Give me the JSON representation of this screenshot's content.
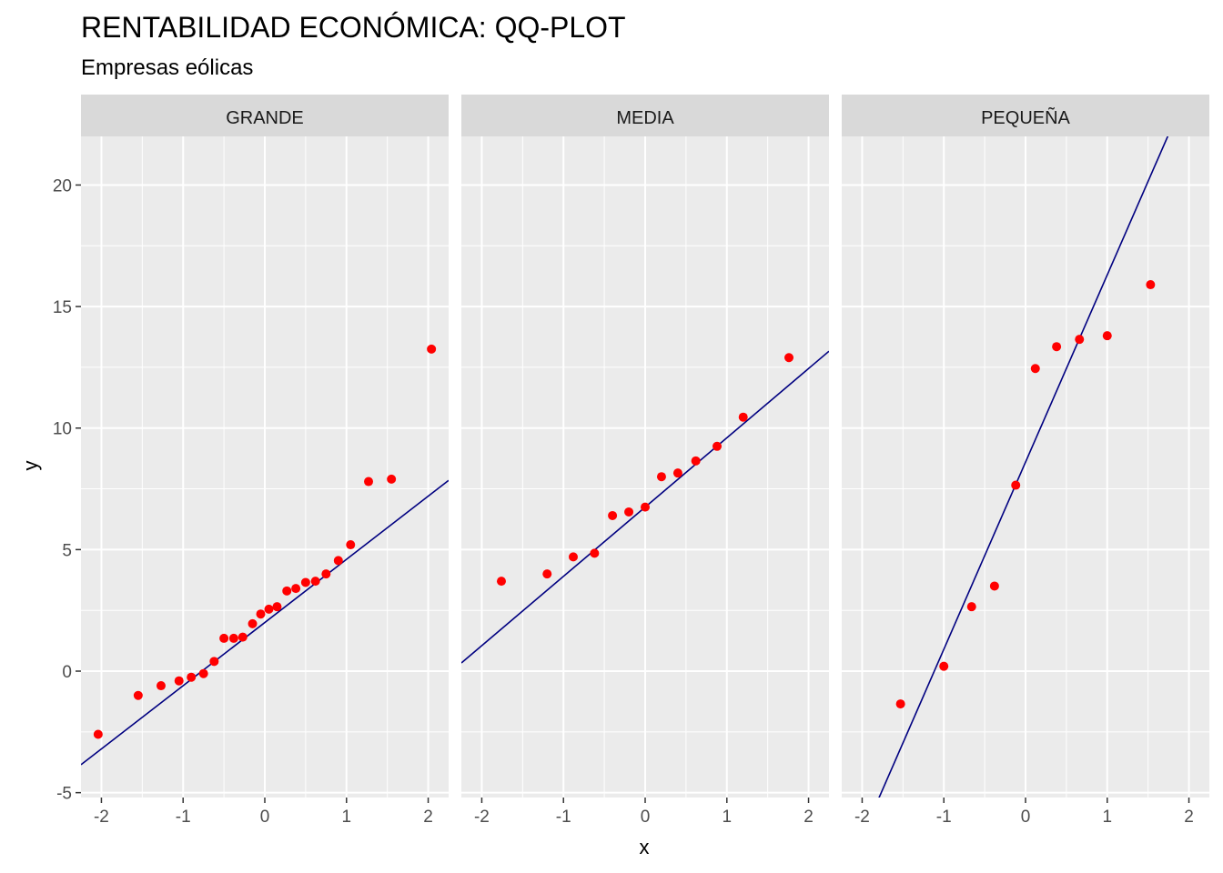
{
  "chart_data": {
    "type": "scatter",
    "title": "RENTABILIDAD ECONÓMICA: QQ-PLOT",
    "subtitle": "Empresas eólicas",
    "xlabel": "x",
    "ylabel": "y",
    "x_ticks": [
      -2,
      -1,
      0,
      1,
      2
    ],
    "y_ticks": [
      -5,
      0,
      5,
      10,
      15,
      20
    ],
    "xlim": [
      -2.25,
      2.25
    ],
    "ylim": [
      -5.2,
      22
    ],
    "point_color": "#ff0000",
    "line_color": "#000080",
    "panel_background": "#ebebeb",
    "strip_background": "#d9d9d9",
    "grid": true,
    "panels": [
      {
        "label": "GRANDE",
        "points": [
          {
            "x": -2.04,
            "y": -2.6
          },
          {
            "x": -1.55,
            "y": -1.0
          },
          {
            "x": -1.27,
            "y": -0.6
          },
          {
            "x": -1.05,
            "y": -0.4
          },
          {
            "x": -0.9,
            "y": -0.25
          },
          {
            "x": -0.75,
            "y": -0.1
          },
          {
            "x": -0.62,
            "y": 0.4
          },
          {
            "x": -0.5,
            "y": 1.35
          },
          {
            "x": -0.38,
            "y": 1.35
          },
          {
            "x": -0.27,
            "y": 1.4
          },
          {
            "x": -0.15,
            "y": 1.95
          },
          {
            "x": -0.05,
            "y": 2.35
          },
          {
            "x": 0.05,
            "y": 2.55
          },
          {
            "x": 0.15,
            "y": 2.65
          },
          {
            "x": 0.27,
            "y": 3.3
          },
          {
            "x": 0.38,
            "y": 3.4
          },
          {
            "x": 0.5,
            "y": 3.65
          },
          {
            "x": 0.62,
            "y": 3.7
          },
          {
            "x": 0.75,
            "y": 4.0
          },
          {
            "x": 0.9,
            "y": 4.55
          },
          {
            "x": 1.05,
            "y": 5.2
          },
          {
            "x": 1.27,
            "y": 7.8
          },
          {
            "x": 1.55,
            "y": 7.9
          },
          {
            "x": 2.04,
            "y": 13.25
          }
        ],
        "line": {
          "intercept": 2.0,
          "slope": 2.6
        }
      },
      {
        "label": "MEDIA",
        "points": [
          {
            "x": -1.76,
            "y": 3.7
          },
          {
            "x": -1.2,
            "y": 4.0
          },
          {
            "x": -0.88,
            "y": 4.7
          },
          {
            "x": -0.62,
            "y": 4.85
          },
          {
            "x": -0.4,
            "y": 6.4
          },
          {
            "x": -0.2,
            "y": 6.55
          },
          {
            "x": 0.0,
            "y": 6.75
          },
          {
            "x": 0.2,
            "y": 8.0
          },
          {
            "x": 0.4,
            "y": 8.15
          },
          {
            "x": 0.62,
            "y": 8.65
          },
          {
            "x": 0.88,
            "y": 9.25
          },
          {
            "x": 1.2,
            "y": 10.45
          },
          {
            "x": 1.76,
            "y": 12.9
          }
        ],
        "line": {
          "intercept": 6.75,
          "slope": 2.85
        }
      },
      {
        "label": "PEQUEÑA",
        "points": [
          {
            "x": -1.53,
            "y": -1.35
          },
          {
            "x": -1.0,
            "y": 0.2
          },
          {
            "x": -0.66,
            "y": 2.65
          },
          {
            "x": -0.38,
            "y": 3.5
          },
          {
            "x": -0.12,
            "y": 7.65
          },
          {
            "x": 0.12,
            "y": 12.45
          },
          {
            "x": 0.38,
            "y": 13.35
          },
          {
            "x": 0.66,
            "y": 13.65
          },
          {
            "x": 1.0,
            "y": 13.8
          },
          {
            "x": 1.53,
            "y": 15.9
          }
        ],
        "line": {
          "intercept": 8.6,
          "slope": 7.7
        }
      }
    ]
  }
}
